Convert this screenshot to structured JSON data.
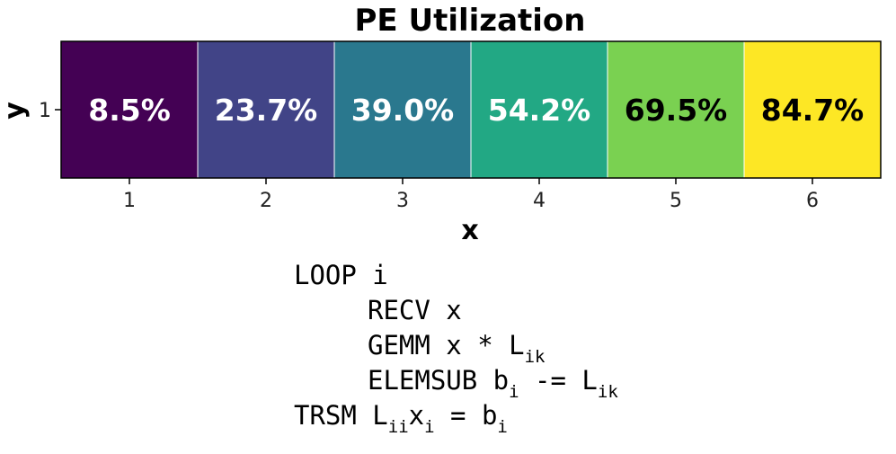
{
  "chart_data": {
    "type": "heatmap",
    "title": "PE Utilization",
    "xlabel": "x",
    "ylabel": "y",
    "x": [
      1,
      2,
      3,
      4,
      5,
      6
    ],
    "x_tick_labels": [
      "1",
      "2",
      "3",
      "4",
      "5",
      "6"
    ],
    "y": [
      1
    ],
    "y_tick_labels": [
      "1"
    ],
    "values": [
      [
        8.5,
        23.7,
        39.0,
        54.2,
        69.5,
        84.7
      ]
    ],
    "cell_labels": [
      "8.5%",
      "23.7%",
      "39.0%",
      "54.2%",
      "69.5%",
      "84.7%"
    ],
    "unit": "%",
    "colormap": "viridis",
    "cell_colors": [
      "#440154",
      "#414487",
      "#2a788e",
      "#22a884",
      "#7ad151",
      "#fde725"
    ],
    "label_colors": [
      "#ffffff",
      "#ffffff",
      "#ffffff",
      "#ffffff",
      "#000000",
      "#000000"
    ],
    "grid": false,
    "legend": "none"
  },
  "code": {
    "lines": [
      {
        "indent": 0,
        "parts": [
          {
            "t": "LOOP i"
          }
        ]
      },
      {
        "indent": 1,
        "parts": [
          {
            "t": "RECV x"
          }
        ]
      },
      {
        "indent": 1,
        "parts": [
          {
            "t": "GEMM x * L"
          },
          {
            "t": "ik",
            "sub": true
          }
        ]
      },
      {
        "indent": 1,
        "parts": [
          {
            "t": "ELEMSUB b"
          },
          {
            "t": "i",
            "sub": true
          },
          {
            "t": " -= L"
          },
          {
            "t": "ik",
            "sub": true
          }
        ]
      },
      {
        "indent": 0,
        "parts": [
          {
            "t": "TRSM L"
          },
          {
            "t": "ii",
            "sub": true
          },
          {
            "t": "x"
          },
          {
            "t": "i",
            "sub": true
          },
          {
            "t": " = b"
          },
          {
            "t": "i",
            "sub": true
          }
        ]
      }
    ]
  }
}
